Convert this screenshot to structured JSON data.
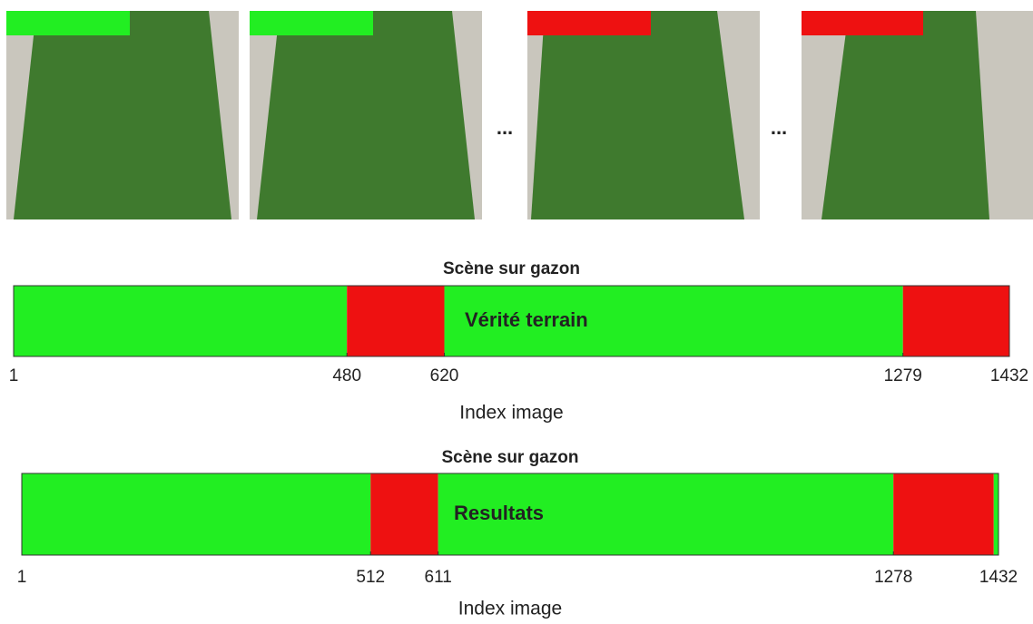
{
  "figure": {
    "separators": [
      "...",
      "..."
    ]
  },
  "chart_data": [
    {
      "type": "timeline",
      "title": "Scène sur gazon",
      "label": "Vérité terrain",
      "xlabel": "Index image",
      "xlim": [
        1,
        1432
      ],
      "xticks": [
        1,
        480,
        620,
        1279,
        1432
      ],
      "segments": [
        {
          "start": 1,
          "end": 480,
          "color": "#22ee22"
        },
        {
          "start": 480,
          "end": 620,
          "color": "#ee1111"
        },
        {
          "start": 620,
          "end": 1279,
          "color": "#22ee22"
        },
        {
          "start": 1279,
          "end": 1432,
          "color": "#ee1111"
        }
      ]
    },
    {
      "type": "timeline",
      "title": "Scène sur gazon",
      "label": "Resultats",
      "xlabel": "Index image",
      "xlim": [
        1,
        1432
      ],
      "xticks": [
        1,
        512,
        611,
        1278,
        1432
      ],
      "segments": [
        {
          "start": 1,
          "end": 512,
          "color": "#22ee22"
        },
        {
          "start": 512,
          "end": 611,
          "color": "#ee1111"
        },
        {
          "start": 611,
          "end": 1278,
          "color": "#22ee22"
        },
        {
          "start": 1278,
          "end": 1425,
          "color": "#ee1111"
        },
        {
          "start": 1425,
          "end": 1432,
          "color": "#22ee22"
        }
      ]
    }
  ]
}
